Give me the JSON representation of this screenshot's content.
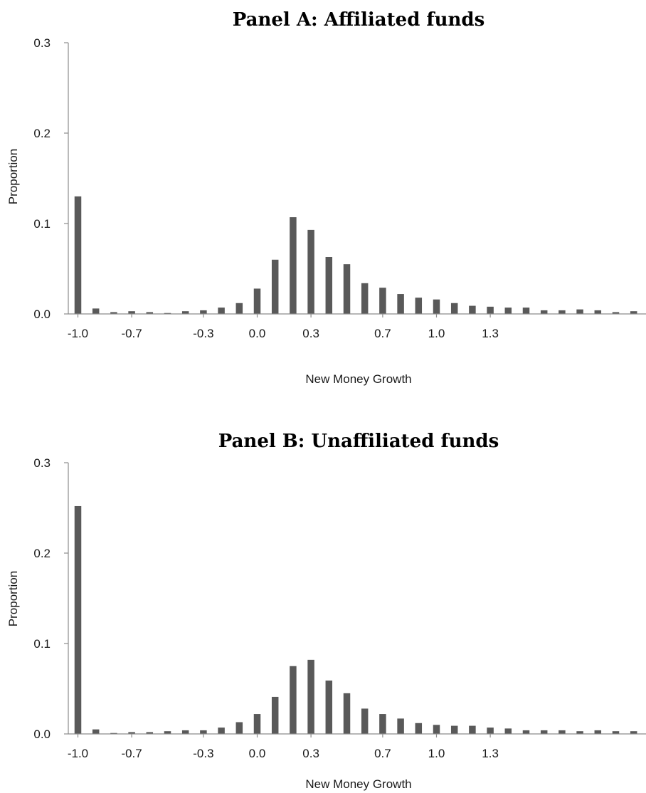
{
  "chart_data": [
    {
      "type": "bar",
      "title": "Panel A: Affiliated funds",
      "xlabel": "New Money Growth",
      "ylabel": "Proportion",
      "ylim": [
        0,
        0.3
      ],
      "yticks": [
        "0.0",
        "0.1",
        "0.2",
        "0.3"
      ],
      "xticks": [
        "-1.0",
        "-0.7",
        "-0.3",
        "0.0",
        "0.3",
        "0.7",
        "1.0",
        "1.3"
      ],
      "values": [
        0.13,
        0.006,
        0.002,
        0.003,
        0.002,
        0.001,
        0.003,
        0.004,
        0.007,
        0.012,
        0.028,
        0.06,
        0.107,
        0.093,
        0.063,
        0.055,
        0.034,
        0.029,
        0.022,
        0.018,
        0.016,
        0.012,
        0.009,
        0.008,
        0.007,
        0.007,
        0.004,
        0.004,
        0.005,
        0.004,
        0.002,
        0.003
      ],
      "grid": false,
      "legend": "none"
    },
    {
      "type": "bar",
      "title": "Panel B: Unaffiliated funds",
      "xlabel": "New Money Growth",
      "ylabel": "Proportion",
      "ylim": [
        0,
        0.3
      ],
      "yticks": [
        "0.0",
        "0.1",
        "0.2",
        "0.3"
      ],
      "xticks": [
        "-1.0",
        "-0.7",
        "-0.3",
        "0.0",
        "0.3",
        "0.7",
        "1.0",
        "1.3"
      ],
      "values": [
        0.252,
        0.005,
        0.001,
        0.002,
        0.002,
        0.003,
        0.004,
        0.004,
        0.007,
        0.013,
        0.022,
        0.041,
        0.075,
        0.082,
        0.059,
        0.045,
        0.028,
        0.022,
        0.017,
        0.012,
        0.01,
        0.009,
        0.009,
        0.007,
        0.006,
        0.004,
        0.004,
        0.004,
        0.003,
        0.004,
        0.003,
        0.003
      ],
      "grid": false,
      "legend": "none"
    }
  ]
}
